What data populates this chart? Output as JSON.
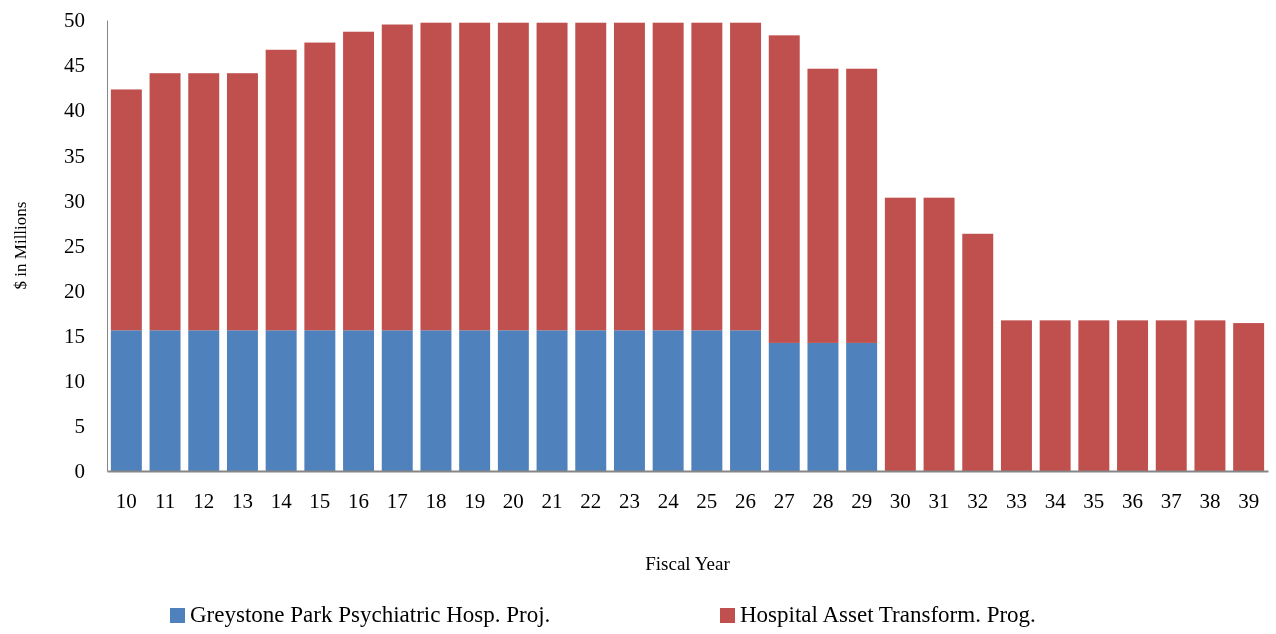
{
  "chart_data": {
    "type": "bar",
    "stacked": true,
    "xlabel": "Fiscal Year",
    "ylabel": "$ in Millions",
    "categories": [
      "10",
      "11",
      "12",
      "13",
      "14",
      "15",
      "16",
      "17",
      "18",
      "19",
      "20",
      "21",
      "22",
      "23",
      "24",
      "25",
      "26",
      "27",
      "28",
      "29",
      "30",
      "31",
      "32",
      "33",
      "34",
      "35",
      "36",
      "37",
      "38",
      "39"
    ],
    "series": [
      {
        "name": "Greystone Park Psychiatric Hosp. Proj.",
        "color": "#4f81bd",
        "values": [
          15.6,
          15.6,
          15.6,
          15.6,
          15.6,
          15.6,
          15.6,
          15.6,
          15.6,
          15.6,
          15.6,
          15.6,
          15.6,
          15.6,
          15.6,
          15.6,
          15.6,
          14.2,
          14.2,
          14.2,
          null,
          null,
          null,
          null,
          null,
          null,
          null,
          null,
          null,
          null
        ]
      },
      {
        "name": "Hospital Asset Transform. Prog.",
        "color": "#c0504d",
        "values": [
          26.7,
          28.5,
          28.5,
          28.5,
          31.1,
          31.9,
          33.1,
          33.9,
          34.1,
          34.1,
          34.1,
          34.1,
          34.1,
          34.1,
          34.1,
          34.1,
          34.1,
          34.1,
          30.4,
          30.4,
          30.3,
          30.3,
          26.3,
          16.7,
          16.7,
          16.7,
          16.7,
          16.7,
          16.7,
          16.4
        ]
      }
    ],
    "ylim": [
      0,
      50
    ],
    "yticks": [
      0,
      5,
      10,
      15,
      20,
      25,
      30,
      35,
      40,
      45,
      50
    ],
    "legend": "bottom",
    "grid": false
  }
}
